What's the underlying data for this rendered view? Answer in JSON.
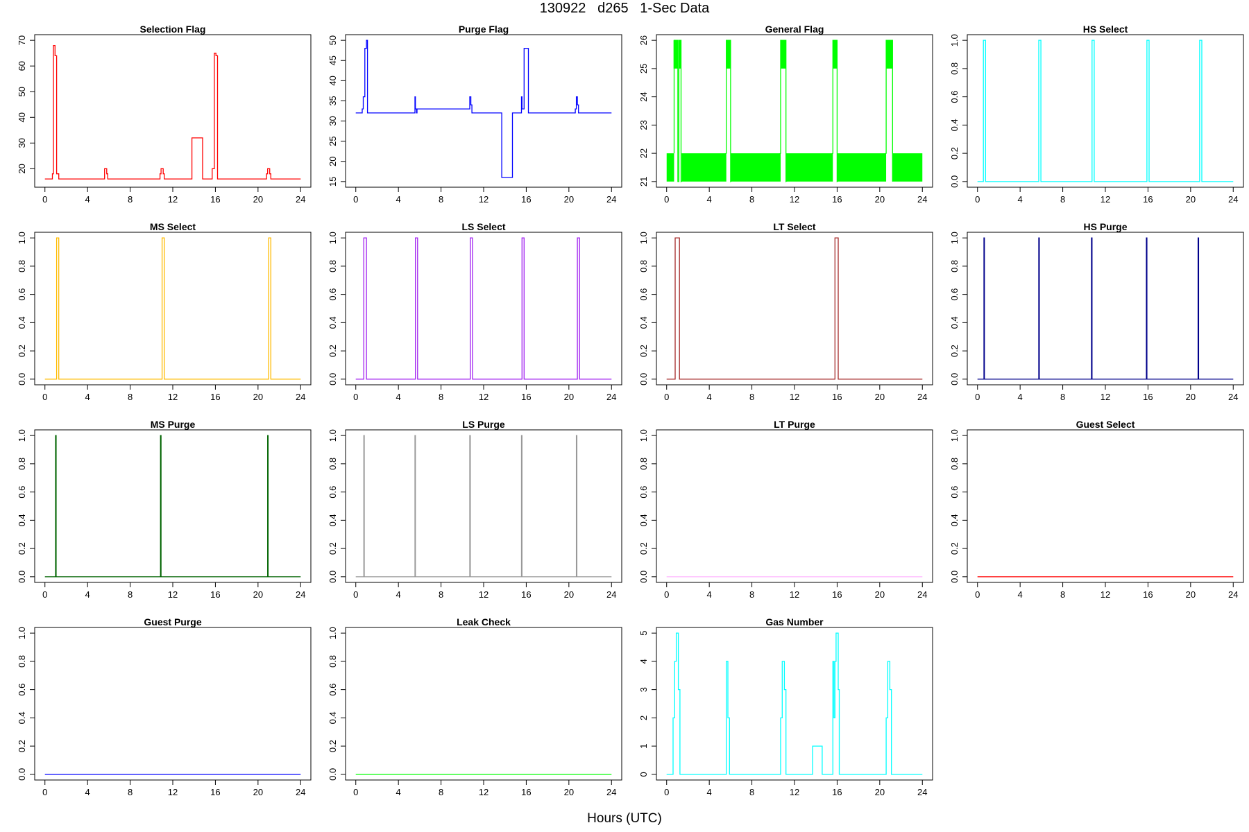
{
  "page": {
    "title": "130922   d265   1-Sec Data",
    "xlabel": "Hours (UTC)"
  },
  "chart_data": [
    {
      "type": "line",
      "title": "Selection Flag",
      "color": "#ff0000",
      "xlim": [
        0,
        24
      ],
      "ylim": [
        15,
        70
      ],
      "xticks": [
        0,
        4,
        8,
        12,
        16,
        20,
        24
      ],
      "yticks": [
        20,
        30,
        40,
        50,
        60,
        70
      ],
      "x": [
        0,
        0.7,
        0.7,
        0.8,
        0.8,
        0.95,
        0.95,
        1.1,
        1.1,
        1.3,
        1.3,
        5.6,
        5.6,
        5.8,
        5.8,
        5.9,
        5.9,
        10.8,
        10.8,
        10.9,
        10.9,
        11.1,
        11.1,
        11.2,
        11.2,
        13.8,
        13.8,
        14.8,
        14.8,
        15.7,
        15.7,
        15.9,
        15.9,
        16.05,
        16.05,
        16.2,
        16.2,
        20.8,
        20.8,
        20.9,
        20.9,
        21.1,
        21.1,
        21.2,
        21.2,
        24
      ],
      "y": [
        16,
        16,
        18,
        18,
        68,
        68,
        64,
        64,
        18,
        18,
        16,
        16,
        20,
        20,
        18,
        18,
        16,
        16,
        18,
        18,
        20,
        20,
        18,
        18,
        16,
        16,
        32,
        32,
        16,
        16,
        20,
        20,
        65,
        65,
        64,
        64,
        16,
        16,
        18,
        18,
        20,
        20,
        18,
        18,
        16,
        16
      ]
    },
    {
      "type": "line",
      "title": "Purge Flag",
      "color": "#0000ff",
      "xlim": [
        0,
        24
      ],
      "ylim": [
        15,
        50
      ],
      "xticks": [
        0,
        4,
        8,
        12,
        16,
        20,
        24
      ],
      "yticks": [
        15,
        20,
        25,
        30,
        35,
        40,
        45,
        50
      ],
      "x": [
        0,
        0.6,
        0.6,
        0.7,
        0.7,
        0.85,
        0.85,
        1.0,
        1.0,
        1.1,
        1.1,
        5.55,
        5.55,
        5.6,
        5.6,
        5.7,
        5.7,
        5.75,
        5.75,
        10.7,
        10.7,
        10.8,
        10.8,
        10.9,
        10.9,
        11.0,
        11.0,
        11.1,
        11.1,
        13.7,
        13.7,
        14.7,
        14.7,
        15.55,
        15.55,
        15.6,
        15.6,
        15.8,
        15.8,
        16.2,
        16.2,
        20.6,
        20.6,
        20.7,
        20.7,
        20.8,
        20.8,
        20.9,
        20.9,
        21.0,
        21.0,
        24
      ],
      "y": [
        32,
        32,
        33,
        33,
        36,
        36,
        48,
        48,
        50,
        50,
        32,
        32,
        36,
        36,
        33,
        33,
        32,
        32,
        33,
        33,
        36,
        36,
        34,
        34,
        32,
        32,
        32,
        32,
        32,
        32,
        16,
        16,
        32,
        32,
        36,
        36,
        33,
        33,
        48,
        48,
        32,
        32,
        33,
        33,
        36,
        36,
        34,
        34,
        32,
        32,
        32,
        32
      ]
    },
    {
      "type": "line",
      "title": "General Flag",
      "color": "#00ff00",
      "xlim": [
        0,
        24
      ],
      "ylim": [
        21,
        26
      ],
      "xticks": [
        0,
        4,
        8,
        12,
        16,
        20,
        24
      ],
      "yticks": [
        21,
        22,
        23,
        24,
        25,
        26
      ],
      "fill_bands": [
        [
          0,
          0.7,
          21,
          22
        ],
        [
          1.4,
          5.6,
          21,
          22
        ],
        [
          6.0,
          10.7,
          21,
          22
        ],
        [
          11.2,
          15.6,
          21,
          22
        ],
        [
          16.0,
          20.6,
          21,
          22
        ],
        [
          21.2,
          24,
          21,
          22
        ],
        [
          0.65,
          1.05,
          25,
          26
        ],
        [
          1.15,
          1.35,
          25,
          26
        ],
        [
          5.6,
          6.0,
          25,
          26
        ],
        [
          10.7,
          11.2,
          25,
          26
        ],
        [
          15.6,
          16.0,
          25,
          26
        ],
        [
          20.6,
          21.2,
          25,
          26
        ]
      ],
      "x": [
        0.7,
        0.7,
        1.05,
        1.05,
        1.15,
        1.15,
        1.35,
        1.35,
        5.6,
        5.6,
        6.0,
        6.0,
        10.7,
        10.7,
        11.2,
        11.2,
        15.6,
        15.6,
        16.0,
        16.0,
        20.6,
        20.6,
        21.2,
        21.2
      ],
      "y": [
        22,
        26,
        26,
        21,
        21,
        26,
        26,
        21,
        22,
        26,
        26,
        21,
        22,
        26,
        26,
        21,
        22,
        26,
        26,
        21,
        22,
        26,
        26,
        21
      ]
    },
    {
      "type": "line",
      "title": "HS Select",
      "color": "#00ffff",
      "xlim": [
        0,
        24
      ],
      "ylim": [
        0,
        1
      ],
      "xticks": [
        0,
        4,
        8,
        12,
        16,
        20,
        24
      ],
      "yticks": [
        0.0,
        0.2,
        0.4,
        0.6,
        0.8,
        1.0
      ],
      "x": [
        0,
        0.55,
        0.55,
        0.75,
        0.75,
        5.75,
        5.75,
        5.95,
        5.95,
        10.75,
        10.75,
        10.95,
        10.95,
        15.9,
        15.9,
        16.1,
        16.1,
        20.85,
        20.85,
        21.05,
        21.05,
        24
      ],
      "y": [
        0,
        0,
        1,
        1,
        0,
        0,
        1,
        1,
        0,
        0,
        1,
        1,
        0,
        0,
        1,
        1,
        0,
        0,
        1,
        1,
        0,
        0
      ]
    },
    {
      "type": "line",
      "title": "MS Select",
      "color": "#ffbb00",
      "xlim": [
        0,
        24
      ],
      "ylim": [
        0,
        1
      ],
      "xticks": [
        0,
        4,
        8,
        12,
        16,
        20,
        24
      ],
      "yticks": [
        0.0,
        0.2,
        0.4,
        0.6,
        0.8,
        1.0
      ],
      "x": [
        0,
        1.1,
        1.1,
        1.3,
        1.3,
        11.0,
        11.0,
        11.2,
        11.2,
        21.0,
        21.0,
        21.2,
        21.2,
        24
      ],
      "y": [
        0,
        0,
        1,
        1,
        0,
        0,
        1,
        1,
        0,
        0,
        1,
        1,
        0,
        0
      ]
    },
    {
      "type": "line",
      "title": "LS Select",
      "color": "#a020f0",
      "xlim": [
        0,
        24
      ],
      "ylim": [
        0,
        1
      ],
      "xticks": [
        0,
        4,
        8,
        12,
        16,
        20,
        24
      ],
      "yticks": [
        0.0,
        0.2,
        0.4,
        0.6,
        0.8,
        1.0
      ],
      "x": [
        0,
        0.75,
        0.75,
        1.0,
        1.0,
        5.6,
        5.6,
        5.8,
        5.8,
        10.75,
        10.75,
        10.95,
        10.95,
        15.6,
        15.6,
        15.8,
        15.8,
        20.8,
        20.8,
        21.0,
        21.0,
        24
      ],
      "y": [
        0,
        0,
        1,
        1,
        0,
        0,
        1,
        1,
        0,
        0,
        1,
        1,
        0,
        0,
        1,
        1,
        0,
        0,
        1,
        1,
        0,
        0
      ]
    },
    {
      "type": "line",
      "title": "LT Select",
      "color": "#a52a2a",
      "xlim": [
        0,
        24
      ],
      "ylim": [
        0,
        1
      ],
      "xticks": [
        0,
        4,
        8,
        12,
        16,
        20,
        24
      ],
      "yticks": [
        0.0,
        0.2,
        0.4,
        0.6,
        0.8,
        1.0
      ],
      "x": [
        0,
        0.8,
        0.8,
        1.2,
        1.2,
        15.8,
        15.8,
        16.1,
        16.1,
        24
      ],
      "y": [
        0,
        0,
        1,
        1,
        0,
        0,
        1,
        1,
        0,
        0
      ]
    },
    {
      "type": "line",
      "title": "HS Purge",
      "color": "#00008b",
      "xlim": [
        0,
        24
      ],
      "ylim": [
        0,
        1
      ],
      "xticks": [
        0,
        4,
        8,
        12,
        16,
        20,
        24
      ],
      "yticks": [
        0.0,
        0.2,
        0.4,
        0.6,
        0.8,
        1.0
      ],
      "x": [
        0,
        0.6,
        0.6,
        0.65,
        0.65,
        5.75,
        5.75,
        5.8,
        5.8,
        10.7,
        10.7,
        10.75,
        10.75,
        15.85,
        15.85,
        15.9,
        15.9,
        20.7,
        20.7,
        20.75,
        20.75,
        24
      ],
      "y": [
        0,
        0,
        1,
        1,
        0,
        0,
        1,
        1,
        0,
        0,
        1,
        1,
        0,
        0,
        1,
        1,
        0,
        0,
        1,
        1,
        0,
        0
      ]
    },
    {
      "type": "line",
      "title": "MS Purge",
      "color": "#006400",
      "xlim": [
        0,
        24
      ],
      "ylim": [
        0,
        1
      ],
      "xticks": [
        0,
        4,
        8,
        12,
        16,
        20,
        24
      ],
      "yticks": [
        0.0,
        0.2,
        0.4,
        0.6,
        0.8,
        1.0
      ],
      "x": [
        0,
        1.0,
        1.0,
        1.05,
        1.05,
        10.85,
        10.85,
        10.9,
        10.9,
        20.9,
        20.9,
        20.95,
        20.95,
        24
      ],
      "y": [
        0,
        0,
        1,
        1,
        0,
        0,
        1,
        1,
        0,
        0,
        1,
        1,
        0,
        0
      ]
    },
    {
      "type": "line",
      "title": "LS Purge",
      "color": "#999999",
      "xlim": [
        0,
        24
      ],
      "ylim": [
        0,
        1
      ],
      "xticks": [
        0,
        4,
        8,
        12,
        16,
        20,
        24
      ],
      "yticks": [
        0.0,
        0.2,
        0.4,
        0.6,
        0.8,
        1.0
      ],
      "x": [
        0,
        0.75,
        0.75,
        0.8,
        0.8,
        5.55,
        5.55,
        5.6,
        5.6,
        10.7,
        10.7,
        10.75,
        10.75,
        15.55,
        15.55,
        15.6,
        15.6,
        20.7,
        20.7,
        20.75,
        20.75,
        24
      ],
      "y": [
        0,
        0,
        1,
        1,
        0,
        0,
        1,
        1,
        0,
        0,
        1,
        1,
        0,
        0,
        1,
        1,
        0,
        0,
        1,
        1,
        0,
        0
      ]
    },
    {
      "type": "line",
      "title": "LT Purge",
      "color": "#ffb6ff",
      "xlim": [
        0,
        24
      ],
      "ylim": [
        0,
        1
      ],
      "xticks": [
        0,
        4,
        8,
        12,
        16,
        20,
        24
      ],
      "yticks": [
        0.0,
        0.2,
        0.4,
        0.6,
        0.8,
        1.0
      ],
      "x": [
        0,
        24
      ],
      "y": [
        0,
        0
      ]
    },
    {
      "type": "line",
      "title": "Guest Select",
      "color": "#ff0000",
      "xlim": [
        0,
        24
      ],
      "ylim": [
        0,
        1
      ],
      "xticks": [
        0,
        4,
        8,
        12,
        16,
        20,
        24
      ],
      "yticks": [
        0.0,
        0.2,
        0.4,
        0.6,
        0.8,
        1.0
      ],
      "x": [
        0,
        24
      ],
      "y": [
        0,
        0
      ]
    },
    {
      "type": "line",
      "title": "Guest Purge",
      "color": "#0000ff",
      "xlim": [
        0,
        24
      ],
      "ylim": [
        0,
        1
      ],
      "xticks": [
        0,
        4,
        8,
        12,
        16,
        20,
        24
      ],
      "yticks": [
        0.0,
        0.2,
        0.4,
        0.6,
        0.8,
        1.0
      ],
      "x": [
        0,
        24
      ],
      "y": [
        0,
        0
      ]
    },
    {
      "type": "line",
      "title": "Leak Check",
      "color": "#00ff00",
      "xlim": [
        0,
        24
      ],
      "ylim": [
        0,
        1
      ],
      "xticks": [
        0,
        4,
        8,
        12,
        16,
        20,
        24
      ],
      "yticks": [
        0.0,
        0.2,
        0.4,
        0.6,
        0.8,
        1.0
      ],
      "x": [
        0,
        24
      ],
      "y": [
        0,
        0
      ]
    },
    {
      "type": "line",
      "title": "Gas Number",
      "color": "#00ffff",
      "xlim": [
        0,
        24
      ],
      "ylim": [
        0,
        5
      ],
      "xticks": [
        0,
        4,
        8,
        12,
        16,
        20,
        24
      ],
      "yticks": [
        0,
        1,
        2,
        3,
        4,
        5
      ],
      "x": [
        0,
        0.6,
        0.6,
        0.75,
        0.75,
        0.9,
        0.9,
        1.1,
        1.1,
        1.25,
        1.25,
        5.6,
        5.6,
        5.75,
        5.75,
        5.9,
        5.9,
        10.7,
        10.7,
        10.85,
        10.85,
        11.05,
        11.05,
        11.2,
        11.2,
        13.7,
        13.7,
        14.6,
        14.6,
        15.6,
        15.6,
        15.7,
        15.7,
        15.8,
        15.8,
        15.9,
        15.9,
        16.1,
        16.1,
        16.2,
        16.2,
        20.6,
        20.6,
        20.75,
        20.75,
        20.95,
        20.95,
        21.1,
        21.1,
        24
      ],
      "y": [
        0,
        0,
        2,
        2,
        4,
        4,
        5,
        5,
        3,
        3,
        0,
        0,
        4,
        4,
        2,
        2,
        0,
        0,
        2,
        2,
        4,
        4,
        3,
        3,
        0,
        0,
        1,
        1,
        0,
        0,
        4,
        4,
        2,
        2,
        4,
        4,
        5,
        5,
        3,
        3,
        0,
        0,
        2,
        2,
        4,
        4,
        3,
        3,
        0,
        0
      ]
    }
  ]
}
